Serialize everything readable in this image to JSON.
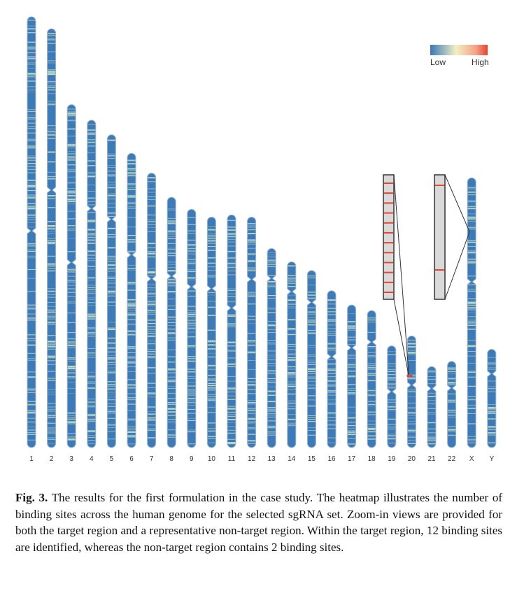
{
  "legend": {
    "low_label": "Low",
    "high_label": "High",
    "colors": [
      "#3a78b8",
      "#f2efc4",
      "#f4a184",
      "#e8412e"
    ]
  },
  "colors": {
    "chromosome_fill": "#3d7ab8",
    "chromosome_outline": "#9fb4c9",
    "band_light": "#cfe4c4",
    "zoom_fill": "#d9d9d9",
    "zoom_border": "#333333",
    "hit_color": "#e8412e"
  },
  "chart_data": {
    "type": "heatmap",
    "chromosomes": [
      {
        "name": "1",
        "length_rel": 1.0,
        "centromere_frac": 0.497
      },
      {
        "name": "2",
        "length_rel": 0.972,
        "centromere_frac": 0.385
      },
      {
        "name": "3",
        "length_rel": 0.796,
        "centromere_frac": 0.46
      },
      {
        "name": "4",
        "length_rel": 0.76,
        "centromere_frac": 0.27
      },
      {
        "name": "5",
        "length_rel": 0.726,
        "centromere_frac": 0.27
      },
      {
        "name": "6",
        "length_rel": 0.683,
        "centromere_frac": 0.345
      },
      {
        "name": "7",
        "length_rel": 0.637,
        "centromere_frac": 0.385
      },
      {
        "name": "8",
        "length_rel": 0.581,
        "centromere_frac": 0.315
      },
      {
        "name": "9",
        "length_rel": 0.553,
        "centromere_frac": 0.325
      },
      {
        "name": "10",
        "length_rel": 0.535,
        "centromere_frac": 0.31
      },
      {
        "name": "11",
        "length_rel": 0.54,
        "centromere_frac": 0.4
      },
      {
        "name": "12",
        "length_rel": 0.535,
        "centromere_frac": 0.27
      },
      {
        "name": "13",
        "length_rel": 0.462,
        "centromere_frac": 0.15
      },
      {
        "name": "14",
        "length_rel": 0.431,
        "centromere_frac": 0.16
      },
      {
        "name": "15",
        "length_rel": 0.411,
        "centromere_frac": 0.18
      },
      {
        "name": "16",
        "length_rel": 0.364,
        "centromere_frac": 0.42
      },
      {
        "name": "17",
        "length_rel": 0.331,
        "centromere_frac": 0.3
      },
      {
        "name": "18",
        "length_rel": 0.318,
        "centromere_frac": 0.23
      },
      {
        "name": "19",
        "length_rel": 0.236,
        "centromere_frac": 0.45
      },
      {
        "name": "20",
        "length_rel": 0.259,
        "centromere_frac": 0.44
      },
      {
        "name": "21",
        "length_rel": 0.188,
        "centromere_frac": 0.27
      },
      {
        "name": "22",
        "length_rel": 0.2,
        "centromere_frac": 0.31
      },
      {
        "name": "X",
        "length_rel": 0.626,
        "centromere_frac": 0.385
      },
      {
        "name": "Y",
        "length_rel": 0.228,
        "centromere_frac": 0.25
      }
    ],
    "zoom_views": [
      {
        "region": "target",
        "chromosome": "20",
        "position_frac": 0.36,
        "binding_sites": 12
      },
      {
        "region": "non-target",
        "chromosome": "X",
        "position_frac": 0.2,
        "binding_sites": 2
      }
    ],
    "legend_placement": "top-right"
  },
  "caption": {
    "label": "Fig. 3.",
    "text": "The results for the first formulation in the case study. The heatmap illustrates the number of binding sites across the human genome for the selected sgRNA set. Zoom-in views are provided for both the target region and a representative non-target region. Within the target region, 12 binding sites are identified, whereas the non-target region contains 2 binding sites."
  }
}
